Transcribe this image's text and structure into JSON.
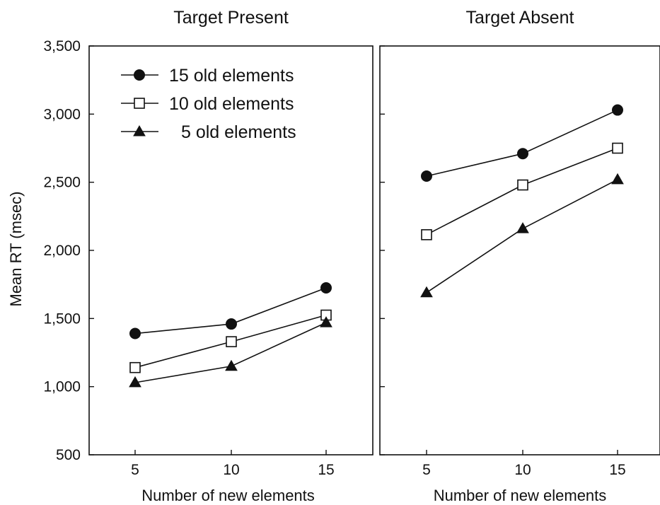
{
  "chart_data": [
    {
      "type": "line",
      "title": "Target Present",
      "xlabel": "Number of new elements",
      "ylabel": "Mean RT (msec)",
      "x": [
        5,
        10,
        15
      ],
      "xticks": [
        "5",
        "10",
        "15"
      ],
      "ylim": [
        500,
        3500
      ],
      "yticks": [
        "3,500",
        "3,000",
        "2,500",
        "2,000",
        "1,500",
        "1,000",
        "500"
      ],
      "grid": false,
      "legend": "top-left",
      "series": [
        {
          "name": "15 old elements",
          "marker": "filled-circle",
          "values": [
            1390,
            1460,
            1725
          ]
        },
        {
          "name": "10 old elements",
          "marker": "open-square",
          "values": [
            1140,
            1330,
            1525
          ]
        },
        {
          "name": "5 old elements",
          "marker": "filled-triangle",
          "values": [
            1030,
            1150,
            1470
          ]
        }
      ]
    },
    {
      "type": "line",
      "title": "Target Absent",
      "xlabel": "Number of new elements",
      "ylabel": "",
      "x": [
        5,
        10,
        15
      ],
      "xticks": [
        "5",
        "10",
        "15"
      ],
      "ylim": [
        500,
        3500
      ],
      "grid": false,
      "series": [
        {
          "name": "15 old elements",
          "marker": "filled-circle",
          "values": [
            2545,
            2710,
            3030
          ]
        },
        {
          "name": "10 old elements",
          "marker": "open-square",
          "values": [
            2115,
            2480,
            2750
          ]
        },
        {
          "name": "5 old elements",
          "marker": "filled-triangle",
          "values": [
            1690,
            2160,
            2520
          ]
        }
      ]
    }
  ],
  "colors": {
    "line": "#111111",
    "marker_fill": "#111111",
    "open_marker_fill": "#ffffff"
  }
}
